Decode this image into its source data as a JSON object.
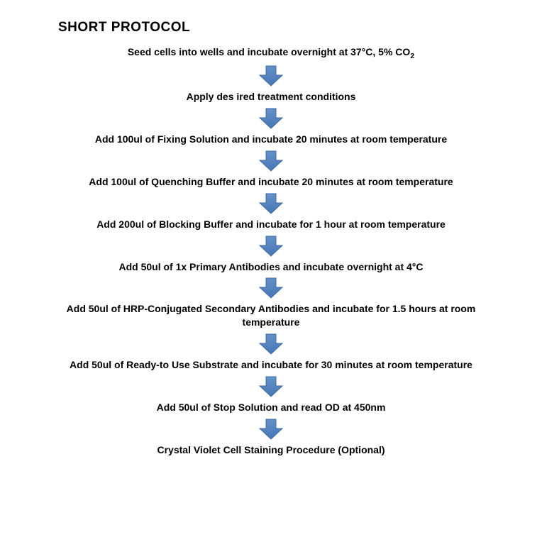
{
  "title": "SHORT PROTOCOL",
  "arrow": {
    "fill": "#4677b5",
    "stroke": "#3d6aa4",
    "width": 34,
    "height": 30
  },
  "text_color": "#000000",
  "background": "#ffffff",
  "font_family": "Arial",
  "title_fontsize": 19,
  "step_fontsize": 14,
  "steps": [
    {
      "html": "Seed cells into wells and incubate overnight at 37°C, 5% CO<sub>2</sub>"
    },
    {
      "html": "Apply des ired treatment conditions"
    },
    {
      "html": "Add 100ul of Fixing Solution and incubate 20 minutes at room temperature"
    },
    {
      "html": "Add 100ul of Quenching Buffer and incubate 20 minutes at room temperature"
    },
    {
      "html": "Add 200ul of Blocking Buffer and incubate for 1 hour at room temperature"
    },
    {
      "html": "Add 50ul of 1x Primary Antibodies and incubate overnight at 4°C"
    },
    {
      "html": "Add 50ul of HRP-Conjugated Secondary Antibodies and incubate for 1.5 hours at room temperature"
    },
    {
      "html": "Add 50ul of Ready-to Use Substrate and incubate for 30 minutes at room temperature"
    },
    {
      "html": "Add 50ul of Stop Solution and read OD at 450nm"
    },
    {
      "html": "Crystal Violet Cell Staining Procedure (Optional)"
    }
  ]
}
